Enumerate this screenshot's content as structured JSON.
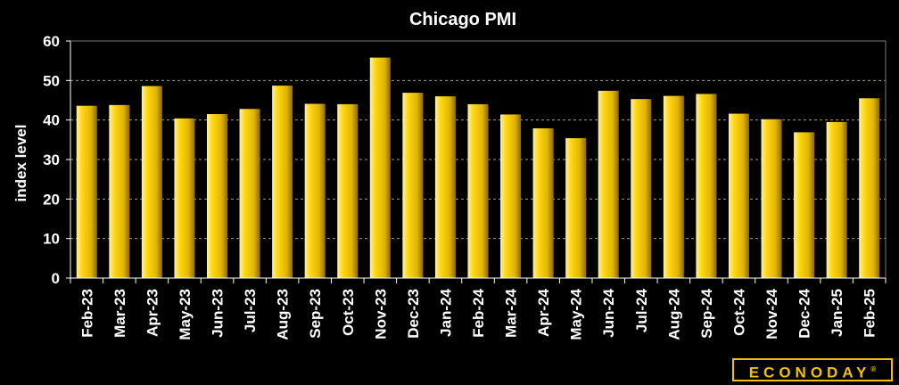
{
  "chart_data": {
    "type": "bar",
    "title": "Chicago PMI",
    "xlabel": "",
    "ylabel": "index level",
    "ylim": [
      0,
      60
    ],
    "yticks": [
      0,
      10,
      20,
      30,
      40,
      50,
      60
    ],
    "grid": true,
    "categories": [
      "Feb-23",
      "Mar-23",
      "Apr-23",
      "May-23",
      "Jun-23",
      "Jul-23",
      "Aug-23",
      "Sep-23",
      "Oct-23",
      "Nov-23",
      "Dec-23",
      "Jan-24",
      "Feb-24",
      "Mar-24",
      "Apr-24",
      "May-24",
      "Jun-24",
      "Jul-24",
      "Aug-24",
      "Sep-24",
      "Oct-24",
      "Nov-24",
      "Dec-24",
      "Jan-25",
      "Feb-25"
    ],
    "values": [
      43.6,
      43.8,
      48.6,
      40.4,
      41.5,
      42.8,
      48.7,
      44.1,
      44.0,
      55.8,
      46.9,
      46.0,
      44.0,
      41.4,
      37.9,
      35.4,
      47.4,
      45.3,
      46.1,
      46.6,
      41.6,
      40.2,
      36.9,
      39.5,
      45.5
    ],
    "bar_color": "#f2c200"
  },
  "branding": {
    "logo_text": "ECONODAY",
    "logo_mark": "®"
  }
}
